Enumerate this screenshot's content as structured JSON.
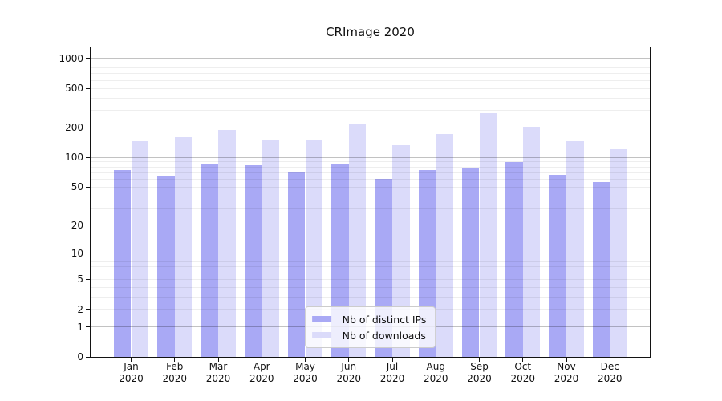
{
  "chart_data": {
    "type": "bar",
    "title": "CRImage 2020",
    "categories": [
      "Jan 2020",
      "Feb 2020",
      "Mar 2020",
      "Apr 2020",
      "May 2020",
      "Jun 2020",
      "Jul 2020",
      "Aug 2020",
      "Sep 2020",
      "Oct 2020",
      "Nov 2020",
      "Dec 2020"
    ],
    "x_tick_month": [
      "Jan",
      "Feb",
      "Mar",
      "Apr",
      "May",
      "Jun",
      "Jul",
      "Aug",
      "Sep",
      "Oct",
      "Nov",
      "Dec"
    ],
    "x_tick_year": "2020",
    "series": [
      {
        "name": "Nb of distinct IPs",
        "color": "#a9a9f5",
        "values": [
          74,
          64,
          85,
          83,
          70,
          85,
          60,
          74,
          78,
          90,
          66,
          56
        ]
      },
      {
        "name": "Nb of downloads",
        "color": "#dbdbfa",
        "values": [
          146,
          162,
          189,
          150,
          152,
          222,
          134,
          172,
          280,
          204,
          145,
          121
        ]
      }
    ],
    "yscale": "log1p",
    "ylim": [
      0,
      1290
    ],
    "ytick_values": [
      1000,
      500,
      200,
      100,
      50,
      20,
      10,
      5,
      2,
      1,
      0
    ],
    "ytick_labels": [
      "1000",
      "500",
      "200",
      "100",
      "50",
      "20",
      "10",
      "5",
      "2",
      "1",
      "0"
    ],
    "grid": true,
    "grid_major_values": [
      1,
      10,
      100,
      1000
    ],
    "legend_position": "lower center"
  },
  "colors": {
    "axis": "#131313",
    "background": "#ffffff"
  }
}
